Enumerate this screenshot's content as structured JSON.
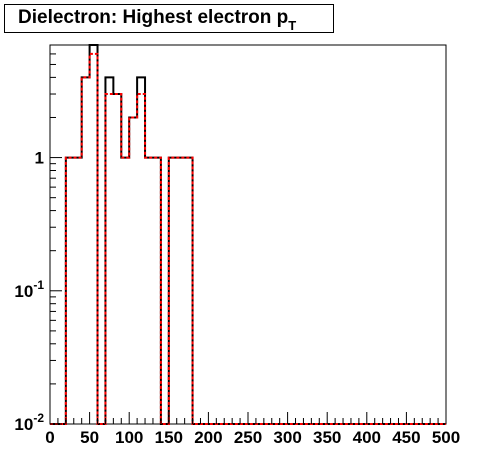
{
  "title": {
    "main": "Dielectron: Highest electron p",
    "subscript": "T"
  },
  "chart_data": {
    "type": "histogram",
    "title": "Dielectron: Highest electron pT",
    "xlabel": "",
    "ylabel": "",
    "xlim": [
      0,
      500
    ],
    "ylim": [
      0.01,
      7
    ],
    "yscale": "log",
    "grid": false,
    "bin_width": 10,
    "x_ticks": [
      "0",
      "50",
      "100",
      "150",
      "200",
      "250",
      "300",
      "350",
      "400",
      "450",
      "500"
    ],
    "y_ticks": [
      {
        "value": 1,
        "base": "1",
        "exp": ""
      },
      {
        "value": 0.1,
        "base": "10",
        "exp": "-1"
      },
      {
        "value": 0.01,
        "base": "10",
        "exp": "-2"
      }
    ],
    "series": [
      {
        "style": "solid",
        "color": "#000000",
        "bin_edges": [
          0,
          10,
          20,
          30,
          40,
          50,
          60,
          70,
          80,
          90,
          100,
          110,
          120,
          130,
          140,
          150,
          160,
          170,
          180,
          190,
          200,
          210,
          220,
          230,
          240,
          250,
          260,
          270,
          280,
          290,
          300,
          310,
          320,
          330,
          340,
          350,
          360,
          370,
          380,
          390,
          400,
          410,
          420,
          430,
          440,
          450,
          460,
          470,
          480,
          490,
          500
        ],
        "values": [
          0,
          0,
          1,
          1,
          4,
          7,
          0,
          4,
          3,
          1,
          2,
          4,
          1,
          1,
          0,
          1,
          1,
          1,
          0,
          0,
          0,
          0,
          0,
          0,
          0,
          0,
          0,
          0,
          0,
          0,
          0,
          0,
          0,
          0,
          0,
          0,
          0,
          0,
          0,
          0,
          0,
          0,
          0,
          0,
          0,
          0,
          0,
          0,
          0,
          0
        ]
      },
      {
        "style": "dotted",
        "color": "#ff0000",
        "bin_edges": [
          0,
          10,
          20,
          30,
          40,
          50,
          60,
          70,
          80,
          90,
          100,
          110,
          120,
          130,
          140,
          150,
          160,
          170,
          180,
          190,
          200,
          210,
          220,
          230,
          240,
          250,
          260,
          270,
          280,
          290,
          300,
          310,
          320,
          330,
          340,
          350,
          360,
          370,
          380,
          390,
          400,
          410,
          420,
          430,
          440,
          450,
          460,
          470,
          480,
          490,
          500
        ],
        "values": [
          0,
          0,
          1,
          1,
          4,
          6,
          0,
          3,
          3,
          1,
          2,
          3,
          1,
          1,
          0,
          1,
          1,
          1,
          0,
          0,
          0,
          0,
          0,
          0,
          0,
          0,
          0,
          0,
          0,
          0,
          0,
          0,
          0,
          0,
          0,
          0,
          0,
          0,
          0,
          0,
          0,
          0,
          0,
          0,
          0,
          0,
          0,
          0,
          0,
          0
        ]
      }
    ]
  }
}
